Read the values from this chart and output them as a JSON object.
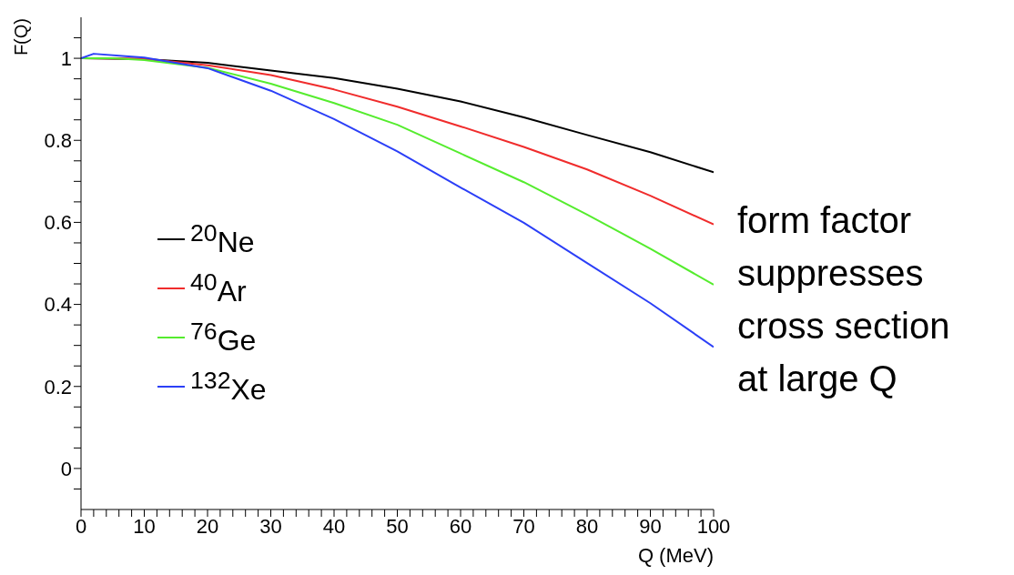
{
  "chart_data": {
    "type": "line",
    "xlabel": "Q (MeV)",
    "ylabel": "F(Q)",
    "xlim": [
      0,
      100
    ],
    "ylim": [
      -0.1,
      1.1
    ],
    "xticks": [
      0,
      {
        "value": 2,
        "label": null
      },
      {
        "value": 4,
        "label": null
      },
      {
        "value": 6,
        "label": null
      },
      {
        "value": 8,
        "label": null
      },
      10,
      {
        "value": 12,
        "label": null
      },
      {
        "value": 14,
        "label": null
      },
      {
        "value": 16,
        "label": null
      },
      {
        "value": 18,
        "label": null
      },
      20,
      {
        "value": 22,
        "label": null
      },
      {
        "value": 24,
        "label": null
      },
      {
        "value": 26,
        "label": null
      },
      {
        "value": 28,
        "label": null
      },
      30,
      {
        "value": 32,
        "label": null
      },
      {
        "value": 34,
        "label": null
      },
      {
        "value": 36,
        "label": null
      },
      {
        "value": 38,
        "label": null
      },
      40,
      {
        "value": 42,
        "label": null
      },
      {
        "value": 44,
        "label": null
      },
      {
        "value": 46,
        "label": null
      },
      {
        "value": 48,
        "label": null
      },
      50,
      {
        "value": 52,
        "label": null
      },
      {
        "value": 54,
        "label": null
      },
      {
        "value": 56,
        "label": null
      },
      {
        "value": 58,
        "label": null
      },
      60,
      {
        "value": 62,
        "label": null
      },
      {
        "value": 64,
        "label": null
      },
      {
        "value": 66,
        "label": null
      },
      {
        "value": 68,
        "label": null
      },
      70,
      {
        "value": 72,
        "label": null
      },
      {
        "value": 74,
        "label": null
      },
      {
        "value": 76,
        "label": null
      },
      {
        "value": 78,
        "label": null
      },
      80,
      {
        "value": 82,
        "label": null
      },
      {
        "value": 84,
        "label": null
      },
      {
        "value": 86,
        "label": null
      },
      {
        "value": 88,
        "label": null
      },
      90,
      {
        "value": 92,
        "label": null
      },
      {
        "value": 94,
        "label": null
      },
      {
        "value": 96,
        "label": null
      },
      {
        "value": 98,
        "label": null
      },
      100
    ],
    "yticks": [
      {
        "value": -0.05,
        "label": null
      },
      0,
      {
        "value": 0.05,
        "label": null
      },
      {
        "value": 0.1,
        "label": null
      },
      {
        "value": 0.15,
        "label": null
      },
      0.2,
      {
        "value": 0.25,
        "label": null
      },
      {
        "value": 0.3,
        "label": null
      },
      {
        "value": 0.35,
        "label": null
      },
      0.4,
      {
        "value": 0.45,
        "label": null
      },
      {
        "value": 0.5,
        "label": null
      },
      {
        "value": 0.55,
        "label": null
      },
      0.6,
      {
        "value": 0.65,
        "label": null
      },
      {
        "value": 0.7,
        "label": null
      },
      {
        "value": 0.75,
        "label": null
      },
      0.8,
      {
        "value": 0.85,
        "label": null
      },
      {
        "value": 0.9,
        "label": null
      },
      {
        "value": 0.95,
        "label": null
      },
      1,
      {
        "value": 1.05,
        "label": null
      }
    ],
    "legend": "left",
    "marker": "none",
    "line_style": "solid",
    "annotations": [
      "form factor\nsuppresses\ncross section\nat large Q"
    ],
    "series": [
      {
        "name": "$^{20}$Ne",
        "color": "#000000",
        "x": [
          0,
          10,
          20,
          30,
          40,
          50,
          60,
          70,
          80,
          90,
          100
        ],
        "values": [
          1,
          0.998,
          0.989,
          0.97,
          0.952,
          0.926,
          0.895,
          0.856,
          0.813,
          0.771,
          0.722
        ]
      },
      {
        "name": "$^{40}$Ar",
        "color": "#f02c2c",
        "x": [
          0,
          10,
          20,
          30,
          40,
          50,
          60,
          70,
          80,
          90,
          100
        ],
        "values": [
          1,
          0.999,
          0.983,
          0.959,
          0.924,
          0.882,
          0.834,
          0.784,
          0.729,
          0.665,
          0.595
        ]
      },
      {
        "name": "$^{76}$Ge",
        "color": "#55ec2e",
        "x": [
          0,
          5,
          10,
          20,
          30,
          40,
          50,
          60,
          70,
          80,
          90,
          100
        ],
        "values": [
          1,
          1,
          0.996,
          0.977,
          0.938,
          0.891,
          0.838,
          0.768,
          0.698,
          0.619,
          0.536,
          0.448
        ]
      },
      {
        "name": "$^{132}$Xe",
        "color": "#2b3ff7",
        "x": [
          0,
          2,
          8,
          10,
          20,
          30,
          40,
          50,
          60,
          70,
          80,
          90,
          100
        ],
        "values": [
          1,
          1.011,
          1.004,
          1.002,
          0.976,
          0.921,
          0.852,
          0.773,
          0.685,
          0.599,
          0.501,
          0.403,
          0.296
        ]
      }
    ]
  }
}
